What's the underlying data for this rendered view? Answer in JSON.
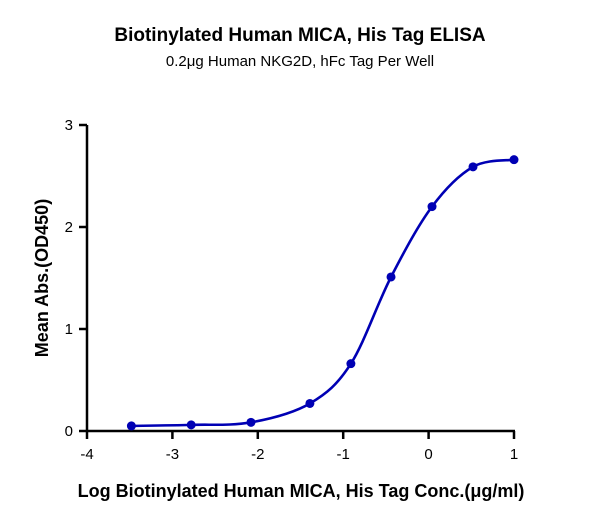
{
  "chart_data": {
    "type": "line",
    "title": "Biotinylated Human MICA, His Tag ELISA",
    "subtitle": "0.2μg Human NKG2D, hFc Tag Per Well",
    "xlabel": "Log Biotinylated Human MICA, His Tag Conc.(μg/ml)",
    "ylabel": "Mean Abs.(OD450)",
    "xlim": [
      -4,
      1
    ],
    "ylim": [
      0,
      3
    ],
    "xticks": [
      "-4",
      "-3",
      "-2",
      "-1",
      "0",
      "1"
    ],
    "yticks": [
      "0",
      "1",
      "2",
      "3"
    ],
    "grid": false,
    "color": "#0000b4",
    "series": [
      {
        "x": [
          -3.48,
          -2.78,
          -2.08,
          -1.39,
          -0.91,
          -0.44,
          0.04,
          0.52,
          1.0
        ],
        "y": [
          0.05,
          0.06,
          0.085,
          0.27,
          0.66,
          1.51,
          2.2,
          2.59,
          2.66
        ],
        "fit": "sigmoidal curve"
      }
    ]
  }
}
